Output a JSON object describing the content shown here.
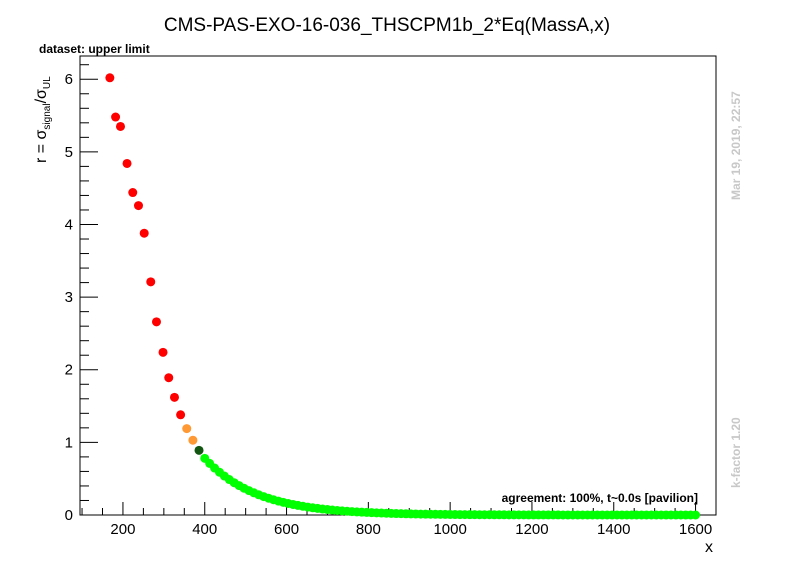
{
  "chart_data": {
    "type": "scatter",
    "title": "CMS-PAS-EXO-16-036_THSCPM1b_2*Eq(MassA,x)",
    "dataset_label": "dataset: upper limit",
    "xlabel": "x",
    "ylabel": {
      "prefix": "r = σ",
      "numerator_sub": "signal",
      "slash": "/σ",
      "denominator_sub": "UL"
    },
    "xlim": [
      95,
      1650
    ],
    "ylim": [
      0,
      6.32
    ],
    "x_major_ticks": [
      200,
      400,
      600,
      800,
      1000,
      1200,
      1400,
      1600
    ],
    "x_tick_labels": [
      "200",
      "400",
      "600",
      "800",
      "1000",
      "1200",
      "1400",
      "1600"
    ],
    "y_major_ticks": [
      0,
      1,
      2,
      3,
      4,
      5,
      6
    ],
    "y_tick_labels": [
      "0",
      "1",
      "2",
      "3",
      "4",
      "5",
      "6"
    ],
    "agreement_text": "agreement: 100%, t~0.0s [pavilion]",
    "timestamp_text": "Mar 19, 2019, 22:57",
    "kfactor_text": "k-factor 1.20",
    "colors": {
      "excluded": "#ff0000",
      "marginal": "#ff9933",
      "border": "#115511",
      "allowed": "#00ff00"
    },
    "series": [
      {
        "status": "excluded",
        "points": [
          [
            168,
            6.02
          ],
          [
            182,
            5.48
          ],
          [
            194,
            5.35
          ],
          [
            210,
            4.84
          ],
          [
            224,
            4.44
          ],
          [
            238,
            4.26
          ],
          [
            252,
            3.88
          ],
          [
            268,
            3.21
          ],
          [
            282,
            2.66
          ],
          [
            298,
            2.24
          ],
          [
            312,
            1.89
          ],
          [
            326,
            1.62
          ],
          [
            341,
            1.38
          ]
        ]
      },
      {
        "status": "marginal",
        "points": [
          [
            356,
            1.19
          ],
          [
            371,
            1.03
          ]
        ]
      },
      {
        "status": "border",
        "points": [
          [
            386,
            0.89
          ]
        ]
      },
      {
        "status": "allowed",
        "x_start": 400,
        "x_end": 1600,
        "x_step": 12,
        "curve": {
          "amplitude": 0.78,
          "decay_per_unit": 0.0078
        }
      }
    ]
  }
}
